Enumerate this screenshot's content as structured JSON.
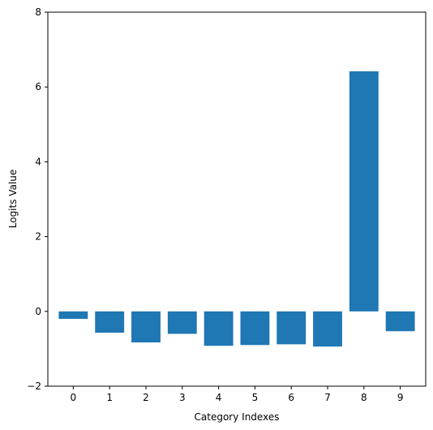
{
  "chart_data": {
    "type": "bar",
    "xlabel": "Category Indexes",
    "ylabel": "Logits Value",
    "categories": [
      "0",
      "1",
      "2",
      "3",
      "4",
      "5",
      "6",
      "7",
      "8",
      "9"
    ],
    "values": [
      -0.2,
      -0.57,
      -0.83,
      -0.6,
      -0.92,
      -0.9,
      -0.88,
      -0.94,
      6.42,
      -0.53
    ],
    "ylim": [
      -2,
      8
    ],
    "yticks": [
      "−2",
      "0",
      "2",
      "4",
      "6",
      "8"
    ],
    "grid": false,
    "bar_color": "#1f77b4"
  }
}
